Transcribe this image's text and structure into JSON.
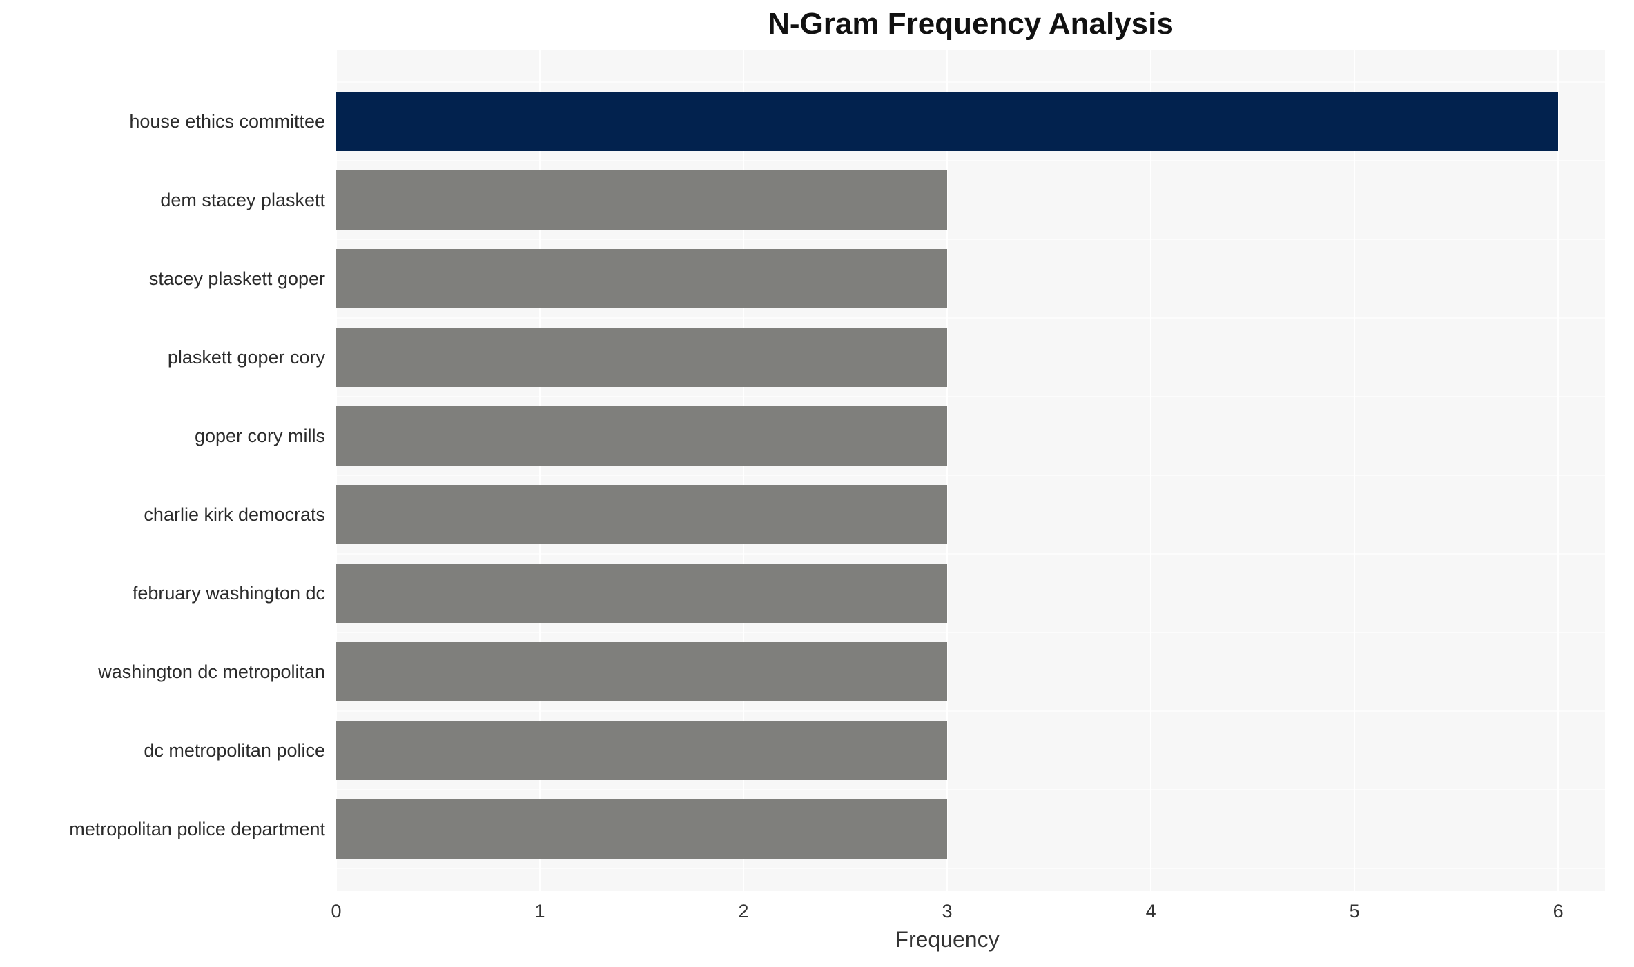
{
  "chart_data": {
    "type": "bar",
    "orientation": "horizontal",
    "title": "N-Gram Frequency Analysis",
    "xlabel": "Frequency",
    "ylabel": "",
    "categories": [
      "house ethics committee",
      "dem stacey plaskett",
      "stacey plaskett goper",
      "plaskett goper cory",
      "goper cory mills",
      "charlie kirk democrats",
      "february washington dc",
      "washington dc metropolitan",
      "dc metropolitan police",
      "metropolitan police department"
    ],
    "values": [
      6,
      3,
      3,
      3,
      3,
      3,
      3,
      3,
      3,
      3
    ],
    "xlim": [
      0,
      6.23
    ],
    "xticks": [
      0,
      1,
      2,
      3,
      4,
      5,
      6
    ],
    "grid": "on",
    "legend": "none",
    "plot_background": "#f7f7f7",
    "highlight_index": 0,
    "highlight_color": "#02224e",
    "default_bar_color": "#7f7f7c"
  }
}
